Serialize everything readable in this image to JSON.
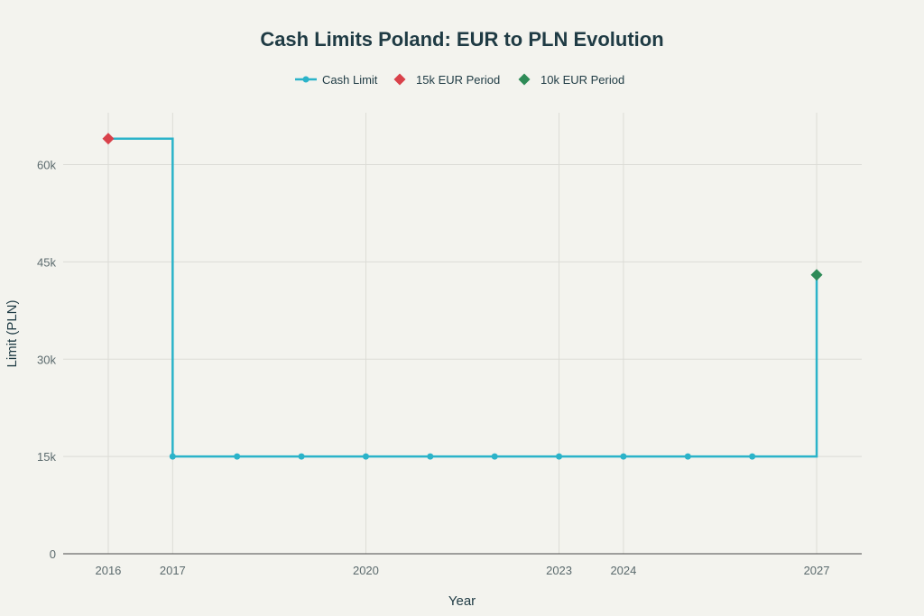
{
  "chart_data": {
    "type": "line",
    "title": "Cash Limits Poland: EUR to PLN Evolution",
    "xlabel": "Year",
    "ylabel": "Limit (PLN)",
    "xlim": [
      2015.3,
      2027.7
    ],
    "ylim": [
      0,
      68000
    ],
    "x_ticks": [
      2016,
      2017,
      2020,
      2023,
      2024,
      2027
    ],
    "x_tick_labels": [
      "2016",
      "2017",
      "2020",
      "2023",
      "2024",
      "2027"
    ],
    "y_ticks": [
      0,
      15000,
      30000,
      45000,
      60000
    ],
    "y_tick_labels": [
      "0",
      "15k",
      "30k",
      "45k",
      "60k"
    ],
    "grid": true,
    "legend_position": "top-center",
    "series": [
      {
        "name": "Cash Limit",
        "mode": "lines+markers",
        "line_shape": "step",
        "color": "#2bb3c9",
        "x": [
          2017,
          2018,
          2019,
          2020,
          2021,
          2022,
          2023,
          2024,
          2025,
          2026
        ],
        "y": [
          15000,
          15000,
          15000,
          15000,
          15000,
          15000,
          15000,
          15000,
          15000,
          15000
        ]
      },
      {
        "name": "15k EUR Period",
        "mode": "markers",
        "marker": "diamond",
        "color": "#d9414a",
        "x": [
          2016
        ],
        "y": [
          64000
        ]
      },
      {
        "name": "10k EUR Period",
        "mode": "markers",
        "marker": "diamond",
        "color": "#2e8b57",
        "x": [
          2027
        ],
        "y": [
          43000
        ]
      }
    ],
    "step_line": {
      "x": [
        2016,
        2017,
        2017,
        2027,
        2027
      ],
      "y": [
        64000,
        64000,
        15000,
        15000,
        43000
      ]
    }
  }
}
